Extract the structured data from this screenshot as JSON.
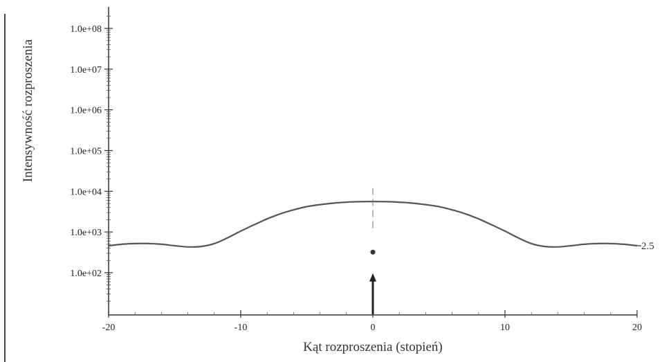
{
  "chart_data": {
    "type": "line",
    "xlabel": "Kąt rozproszenia (stopień)",
    "ylabel": "Intensywność rozproszenia",
    "xlim": [
      -20,
      20
    ],
    "ylim": [
      10,
      200000000
    ],
    "yscale": "log",
    "xticks": [
      -20,
      -10,
      0,
      10,
      20
    ],
    "xtick_labels": [
      "-20",
      "-10",
      "0",
      "10",
      "20"
    ],
    "yticks": [
      100,
      1000,
      10000,
      100000,
      1000000,
      10000000,
      100000000
    ],
    "ytick_labels": [
      "1.0e+02",
      "1.0e+03",
      "1.0e+04",
      "1.0e+05",
      "1.0e+06",
      "1.0e+07",
      "1.0e+08"
    ],
    "grid": false,
    "series": [
      {
        "label": "2.5",
        "color": "#555555",
        "x": [
          -20,
          -19,
          -18,
          -17,
          -16,
          -15,
          -14,
          -13,
          -12,
          -11,
          -10,
          -9,
          -8,
          -7,
          -6,
          -5,
          -4,
          -3,
          -2,
          -1,
          0,
          1,
          2,
          3,
          4,
          5,
          6,
          7,
          8,
          9,
          10,
          11,
          12,
          13,
          14,
          15,
          16,
          17,
          18,
          19,
          20
        ],
        "y": [
          460,
          500,
          520,
          520,
          500,
          460,
          430,
          440,
          520,
          720,
          1050,
          1500,
          2100,
          2800,
          3500,
          4200,
          4700,
          5100,
          5400,
          5550,
          5600,
          5550,
          5400,
          5100,
          4700,
          4200,
          3500,
          2800,
          2100,
          1500,
          1050,
          720,
          520,
          440,
          430,
          460,
          500,
          520,
          520,
          500,
          460
        ]
      }
    ],
    "annotations": {
      "center_line_x": 0,
      "center_line_top": 12000,
      "center_line_bottom": 1000,
      "marker_point": {
        "x": 0,
        "y": 320
      },
      "arrow": {
        "x": 0,
        "from_y": 10,
        "to_y": 90,
        "color": "#222222"
      }
    }
  }
}
